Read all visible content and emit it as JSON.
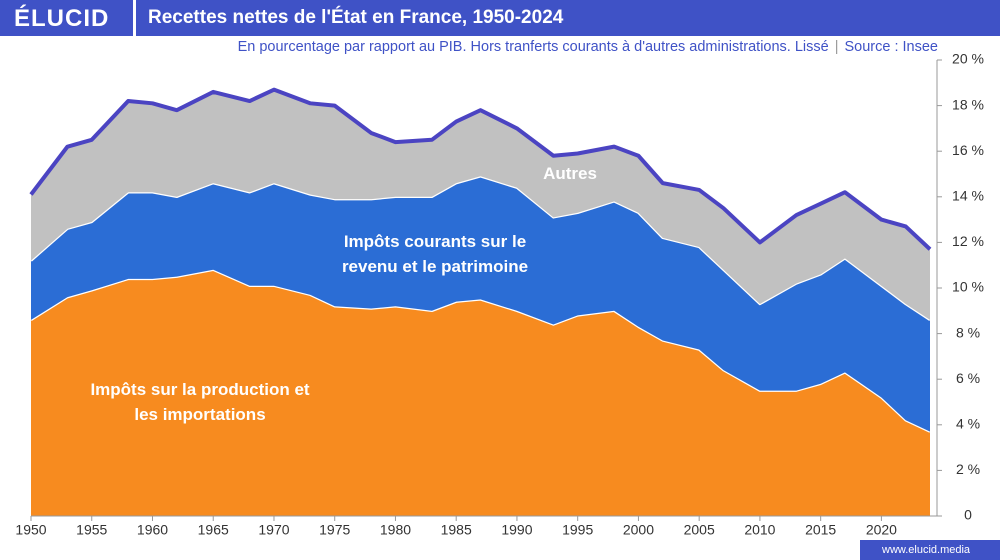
{
  "header": {
    "logo": "ÉLUCID",
    "footer": "www.elucid.media"
  },
  "chart_data": {
    "type": "stacked-area",
    "title": "Recettes nettes de l'État en France, 1950-2024",
    "subtitle": "En pourcentage par rapport au PIB. Hors tranferts courants à d'autres administrations. Lissé",
    "source": "Source : Insee",
    "x": [
      1950,
      1953,
      1955,
      1958,
      1960,
      1962,
      1965,
      1968,
      1970,
      1973,
      1975,
      1978,
      1980,
      1983,
      1985,
      1987,
      1990,
      1993,
      1995,
      1998,
      2000,
      2002,
      2005,
      2007,
      2010,
      2013,
      2015,
      2017,
      2020,
      2022,
      2024
    ],
    "series": [
      {
        "name": "Impôts sur la production et les importations",
        "color": "#f78b1f",
        "values": [
          8.6,
          9.6,
          9.9,
          10.4,
          10.4,
          10.5,
          10.8,
          10.1,
          10.1,
          9.7,
          9.2,
          9.1,
          9.2,
          9.0,
          9.4,
          9.5,
          9.0,
          8.4,
          8.8,
          9.0,
          8.3,
          7.7,
          7.3,
          6.4,
          5.5,
          5.5,
          5.8,
          6.3,
          5.2,
          4.2,
          3.7
        ]
      },
      {
        "name": "Impôts courants sur le revenu et le patrimoine",
        "color": "#2b6dd5",
        "values": [
          2.6,
          3.0,
          3.0,
          3.8,
          3.8,
          3.5,
          3.8,
          4.1,
          4.5,
          4.4,
          4.7,
          4.8,
          4.8,
          5.0,
          5.2,
          5.4,
          5.4,
          4.7,
          4.5,
          4.8,
          5.0,
          4.5,
          4.5,
          4.4,
          3.8,
          4.7,
          4.8,
          5.0,
          4.9,
          5.1,
          4.9
        ]
      },
      {
        "name": "Autres",
        "color": "#c1c1c1",
        "values": [
          2.9,
          3.6,
          3.6,
          4.0,
          3.9,
          3.8,
          4.0,
          4.0,
          4.1,
          4.0,
          4.1,
          2.9,
          2.4,
          2.5,
          2.7,
          2.9,
          2.6,
          2.7,
          2.6,
          2.4,
          2.5,
          2.4,
          2.5,
          2.7,
          2.7,
          3.0,
          3.1,
          2.9,
          2.9,
          3.4,
          3.1
        ]
      }
    ],
    "total_line_color": "#4b44c2",
    "xlim": [
      1950,
      2024
    ],
    "xticks": [
      1950,
      1955,
      1960,
      1965,
      1970,
      1975,
      1980,
      1985,
      1990,
      1995,
      2000,
      2005,
      2010,
      2015,
      2020
    ],
    "ylim": [
      0,
      20
    ],
    "yticks": [
      0,
      {
        "value": 2,
        "label": "2 %"
      },
      {
        "value": 4,
        "label": "4 %"
      },
      {
        "value": 6,
        "label": "6 %"
      },
      {
        "value": 8,
        "label": "8 %"
      },
      {
        "value": 10,
        "label": "10 %"
      },
      {
        "value": 12,
        "label": "12 %"
      },
      {
        "value": 14,
        "label": "14 %"
      },
      {
        "value": 16,
        "label": "16 %"
      },
      {
        "value": 18,
        "label": "18 %"
      },
      {
        "value": 20,
        "label": "20 %"
      }
    ]
  }
}
